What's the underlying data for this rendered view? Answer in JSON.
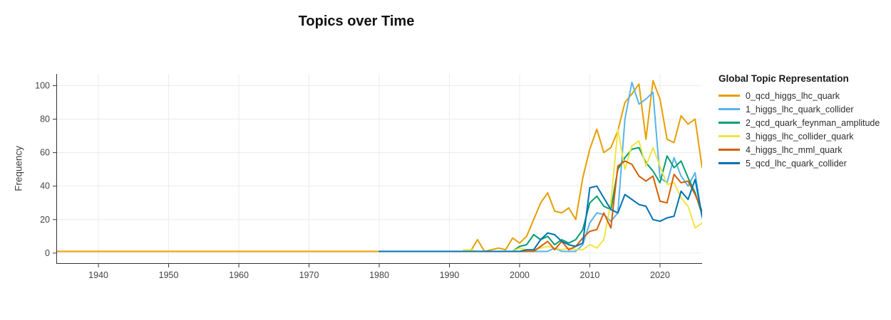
{
  "chart_data": {
    "type": "line",
    "title": "Topics over Time",
    "xlabel": "",
    "ylabel": "Frequency",
    "legend_title": "Global Topic Representation",
    "legend_position": "right",
    "grid": true,
    "background": "#ffffff",
    "grid_color": "#ececec",
    "axis_color": "#333333",
    "tick_label_color": "#444444",
    "xlim": [
      1934,
      2026
    ],
    "ylim": [
      -6,
      107
    ],
    "x_ticks": [
      1940,
      1950,
      1960,
      1970,
      1980,
      1990,
      2000,
      2010,
      2020
    ],
    "y_ticks": [
      0,
      20,
      40,
      60,
      80,
      100
    ],
    "series": [
      {
        "name": "0_qcd_higgs_lhc_quark",
        "color": "#E69F00",
        "start_year": 1934,
        "values": [
          1,
          1,
          1,
          1,
          1,
          1,
          1,
          1,
          1,
          1,
          1,
          1,
          1,
          1,
          1,
          1,
          1,
          1,
          1,
          1,
          1,
          1,
          1,
          1,
          1,
          1,
          1,
          1,
          1,
          1,
          1,
          1,
          1,
          1,
          1,
          1,
          1,
          1,
          1,
          1,
          1,
          1,
          1,
          1,
          1,
          1,
          1,
          1,
          1,
          1,
          1,
          1,
          1,
          1,
          1,
          1,
          1,
          1,
          1,
          1,
          8,
          1,
          2,
          3,
          2,
          9,
          6,
          10,
          20,
          30,
          36,
          25,
          24,
          27,
          20,
          45,
          62,
          74,
          60,
          63,
          73,
          90,
          95,
          101,
          68,
          103,
          92,
          68,
          66,
          82,
          77,
          80,
          51
        ]
      },
      {
        "name": "1_higgs_lhc_quark_collider",
        "color": "#56B4E9",
        "start_year": 1992,
        "values": [
          1,
          1,
          1,
          1,
          1,
          1,
          1,
          1,
          1,
          1,
          1,
          1,
          1,
          3,
          1,
          1,
          1,
          5,
          18,
          24,
          23,
          19,
          24,
          80,
          102,
          89,
          92,
          96,
          45,
          42,
          57,
          46,
          40,
          48,
          21
        ]
      },
      {
        "name": "2_qcd_quark_feynman_amplitude",
        "color": "#009E73",
        "start_year": 1992,
        "values": [
          1,
          1,
          1,
          1,
          1,
          1,
          1,
          1,
          4,
          5,
          11,
          8,
          10,
          5,
          8,
          6,
          8,
          14,
          30,
          34,
          28,
          26,
          50,
          57,
          62,
          63,
          54,
          49,
          42,
          58,
          51,
          55,
          45,
          36,
          23
        ]
      },
      {
        "name": "3_higgs_lhc_collider_quark",
        "color": "#F0E442",
        "start_year": 1992,
        "values": [
          2,
          2,
          1,
          1,
          1,
          1,
          1,
          1,
          3,
          2,
          2,
          3,
          4,
          3,
          2,
          3,
          2,
          2,
          5,
          3,
          8,
          30,
          74,
          50,
          64,
          67,
          52,
          63,
          52,
          41,
          42,
          33,
          28,
          15,
          18
        ]
      },
      {
        "name": "4_higgs_lhc_mml_quark",
        "color": "#D55E00",
        "start_year": 1992,
        "values": [
          1,
          1,
          1,
          1,
          1,
          1,
          1,
          1,
          1,
          1,
          1,
          4,
          7,
          2,
          7,
          2,
          4,
          9,
          13,
          14,
          24,
          15,
          52,
          55,
          53,
          46,
          43,
          46,
          31,
          30,
          47,
          42,
          43,
          35,
          25
        ]
      },
      {
        "name": "5_qcd_lhc_quark_collider",
        "color": "#0072B2",
        "start_year": 1980,
        "values": [
          1,
          1,
          1,
          1,
          1,
          1,
          1,
          1,
          1,
          1,
          1,
          1,
          1,
          1,
          1,
          1,
          1,
          1,
          1,
          1,
          1,
          2,
          2,
          8,
          12,
          11,
          7,
          5,
          4,
          6,
          39,
          40,
          33,
          26,
          24,
          35,
          32,
          29,
          28,
          20,
          19,
          21,
          22,
          37,
          32,
          44,
          22
        ]
      }
    ]
  }
}
